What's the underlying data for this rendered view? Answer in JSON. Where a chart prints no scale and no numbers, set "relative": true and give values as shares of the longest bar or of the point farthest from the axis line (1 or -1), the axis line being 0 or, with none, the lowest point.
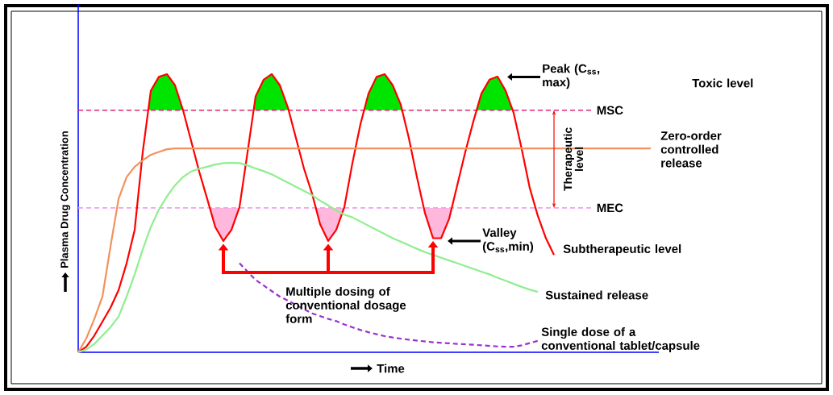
{
  "chart_data": {
    "type": "line",
    "relative": true,
    "xlabel": "Time",
    "ylabel": "Plasma Drug Concentration",
    "categories": [
      null,
      null,
      null,
      null,
      null,
      null,
      null,
      null,
      null,
      null,
      null,
      null,
      null,
      null,
      null,
      null,
      null,
      null,
      null,
      null,
      null,
      null,
      null,
      null,
      null,
      null,
      null,
      null,
      null,
      null,
      null,
      null,
      null,
      null,
      null,
      null,
      null,
      null,
      null,
      null,
      null,
      null,
      null,
      null,
      null,
      null,
      null,
      null,
      null,
      null,
      null,
      null,
      null,
      null,
      null,
      null,
      null,
      null,
      null,
      null,
      null,
      null,
      null,
      null,
      null,
      null,
      null,
      null,
      null,
      null,
      null,
      null
    ],
    "series": [
      {
        "color": "#ff0000",
        "values": [
          0,
          0.02,
          0.06,
          0.11,
          0.16,
          0.223,
          0.32,
          0.44,
          0.72,
          0.94,
          0.99,
          1.0,
          0.96,
          0.87,
          0.76,
          0.65,
          0.551,
          0.45,
          0.4,
          0.44,
          0.522,
          0.72,
          0.92,
          0.98,
          1.0,
          0.96,
          0.88,
          0.77,
          0.66,
          0.57,
          0.46,
          0.4,
          0.44,
          0.522,
          0.68,
          0.82,
          0.93,
          0.99,
          1.0,
          0.96,
          0.89,
          0.77,
          0.63,
          0.5,
          0.41,
          0.41,
          0.48,
          0.6,
          0.72,
          0.83,
          0.93,
          0.98,
          0.991,
          0.94,
          0.86,
          0.73,
          0.59,
          0.49,
          0.41,
          0.35,
          null,
          null,
          null,
          null,
          null,
          null,
          null,
          null,
          null,
          null,
          null,
          null
        ]
      },
      {
        "name": "Zero-order controlled release",
        "color": "#f4915c",
        "values": [
          0,
          0.05,
          0.12,
          0.2,
          0.38,
          0.551,
          0.63,
          0.667,
          0.69,
          0.71,
          0.72,
          0.73,
          0.733,
          0.733,
          0.733,
          0.733,
          0.733,
          0.733,
          0.733,
          0.733,
          0.733,
          0.733,
          0.733,
          0.733,
          0.733,
          0.733,
          0.733,
          0.733,
          0.733,
          0.733,
          0.733,
          0.733,
          0.733,
          0.733,
          0.733,
          0.733,
          0.733,
          0.733,
          0.733,
          0.733,
          0.733,
          0.733,
          0.733,
          0.733,
          0.733,
          0.733,
          0.733,
          0.733,
          0.733,
          0.733,
          0.733,
          0.733,
          0.733,
          0.733,
          0.733,
          0.733,
          0.733,
          0.733,
          0.733,
          0.733,
          0.733,
          0.733,
          0.733,
          0.733,
          0.733,
          0.733,
          0.733,
          0.733,
          0.733,
          0.733,
          0.733,
          0.733
        ]
      },
      {
        "name": "Sustained release",
        "color": "#90ee90",
        "values": [
          0,
          0.01,
          0.03,
          0.06,
          0.09,
          0.128,
          0.2,
          0.28,
          0.37,
          0.45,
          0.513,
          0.56,
          0.6,
          0.63,
          0.65,
          0.66,
          0.667,
          0.675,
          0.68,
          0.681,
          0.68,
          0.672,
          0.661,
          0.651,
          0.64,
          0.625,
          0.61,
          0.595,
          0.58,
          0.565,
          0.545,
          0.528,
          0.51,
          0.495,
          0.485,
          0.47,
          0.455,
          0.44,
          0.425,
          0.41,
          0.398,
          0.385,
          0.372,
          0.36,
          0.35,
          0.34,
          0.33,
          0.32,
          0.31,
          0.3,
          0.29,
          0.28,
          0.268,
          0.257,
          0.246,
          0.235,
          0.225,
          0.217,
          null,
          null,
          null,
          null,
          null,
          null,
          null,
          null,
          null,
          null,
          null,
          null,
          null,
          null
        ]
      },
      {
        "name": "Single dose of a conventional tablet/capsule",
        "color": "#9933cc",
        "line_style": "dashed",
        "values": [
          null,
          null,
          null,
          null,
          null,
          null,
          null,
          null,
          null,
          null,
          null,
          null,
          null,
          null,
          null,
          null,
          null,
          null,
          null,
          null,
          0.32,
          0.29,
          0.26,
          0.24,
          0.22,
          0.2,
          0.186,
          0.17,
          0.155,
          0.14,
          0.13,
          0.12,
          0.112,
          0.1,
          0.09,
          0.08,
          0.072,
          0.065,
          0.058,
          0.053,
          0.049,
          0.045,
          0.042,
          0.039,
          0.036,
          0.034,
          0.032,
          0.03,
          0.029,
          0.027,
          0.025,
          0.023,
          0.021,
          0.02,
          0.02,
          0.025,
          0.033,
          0.041,
          null,
          null,
          null,
          null,
          null,
          null,
          null,
          null,
          null,
          null,
          null,
          null,
          null,
          null
        ]
      }
    ],
    "ref_lines": [
      {
        "axis": "y",
        "value": 0.87,
        "label": "MSC",
        "color": "#e0207a",
        "line_style": "dashed"
      },
      {
        "axis": "y",
        "value": 0.519,
        "label": "MEC",
        "color": "#f0a0f0",
        "line_style": "dashed"
      }
    ],
    "annotations": [
      "Peak (C$_{ss}$, max)",
      "Valley (C$_{ss}$,min)",
      "Therapeutic level",
      "Toxic level",
      "Subtherapeutic level",
      "Multiple dosing of conventional dosage form"
    ]
  }
}
